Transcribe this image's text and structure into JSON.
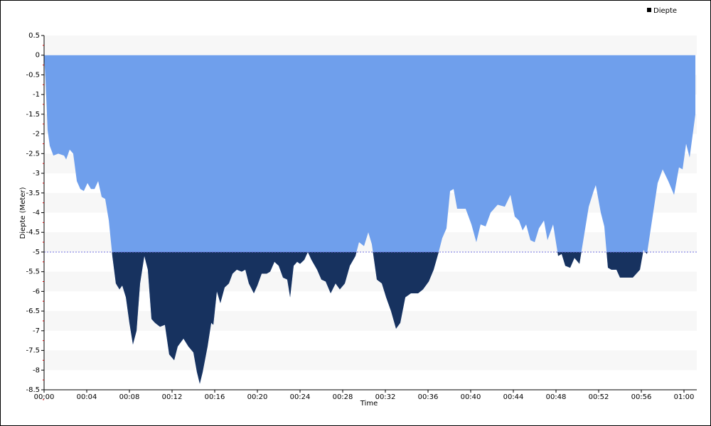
{
  "chart_data": {
    "type": "area",
    "x_label": "Time",
    "y_label": "Diepte (Meter)",
    "legend": "top-right",
    "series": [
      {
        "name": "Diepte",
        "color": "#6f9fec",
        "below_color": "#17325f",
        "x": [
          0,
          0.13,
          0.33,
          0.53,
          0.87,
          1.33,
          1.87,
          2.07,
          2.4,
          2.73,
          3.07,
          3.4,
          3.73,
          4.07,
          4.4,
          4.73,
          5.07,
          5.4,
          5.73,
          6.07,
          6.4,
          6.73,
          7.07,
          7.33,
          7.67,
          8.0,
          8.33,
          8.67,
          9.0,
          9.4,
          9.73,
          10.07,
          10.4,
          10.87,
          11.33,
          11.73,
          12.2,
          12.53,
          13.07,
          13.53,
          14.0,
          14.33,
          14.6,
          14.87,
          15.33,
          15.67,
          15.87,
          16.2,
          16.53,
          16.93,
          17.33,
          17.67,
          18.07,
          18.53,
          18.87,
          19.2,
          19.67,
          20.0,
          20.4,
          20.87,
          21.2,
          21.6,
          22.0,
          22.4,
          22.8,
          23.07,
          23.4,
          23.73,
          24.0,
          24.4,
          24.73,
          25.07,
          25.6,
          26.0,
          26.4,
          26.87,
          27.33,
          27.73,
          28.2,
          28.67,
          29.2,
          29.53,
          30.0,
          30.4,
          30.73,
          31.2,
          31.67,
          32.07,
          32.53,
          33.0,
          33.4,
          33.87,
          34.4,
          35.07,
          35.53,
          36.07,
          36.53,
          37.0,
          37.33,
          37.73,
          38.07,
          38.4,
          38.73,
          39.53,
          40.07,
          40.53,
          40.93,
          41.4,
          41.87,
          42.53,
          43.2,
          43.73,
          44.13,
          44.53,
          44.87,
          45.2,
          45.6,
          46.0,
          46.4,
          46.87,
          47.2,
          47.73,
          48.2,
          48.53,
          48.87,
          49.33,
          49.73,
          50.2,
          50.53,
          51.07,
          51.53,
          51.73,
          52.2,
          52.53,
          52.87,
          53.2,
          53.67,
          54.0,
          54.53,
          55.2,
          55.87,
          56.2,
          56.53,
          57.0,
          57.53,
          58.0,
          58.53,
          59.07,
          59.53,
          59.87,
          60.2,
          60.53,
          61.07
        ],
        "values": [
          0,
          -0.6,
          -1.9,
          -2.3,
          -2.55,
          -2.5,
          -2.55,
          -2.65,
          -2.4,
          -2.5,
          -3.2,
          -3.4,
          -3.45,
          -3.25,
          -3.4,
          -3.4,
          -3.2,
          -3.6,
          -3.65,
          -4.2,
          -5.1,
          -5.8,
          -5.95,
          -5.85,
          -6.15,
          -6.8,
          -7.35,
          -7.0,
          -5.8,
          -5.1,
          -5.45,
          -6.7,
          -6.8,
          -6.9,
          -6.85,
          -7.6,
          -7.75,
          -7.4,
          -7.2,
          -7.4,
          -7.55,
          -8.05,
          -8.35,
          -8.05,
          -7.4,
          -6.8,
          -6.85,
          -6.0,
          -6.3,
          -5.9,
          -5.8,
          -5.55,
          -5.45,
          -5.5,
          -5.45,
          -5.8,
          -6.05,
          -5.85,
          -5.55,
          -5.55,
          -5.5,
          -5.25,
          -5.35,
          -5.65,
          -5.7,
          -6.15,
          -5.35,
          -5.25,
          -5.3,
          -5.2,
          -5.0,
          -5.2,
          -5.45,
          -5.7,
          -5.75,
          -6.05,
          -5.8,
          -5.95,
          -5.8,
          -5.35,
          -5.1,
          -4.75,
          -4.85,
          -4.5,
          -4.8,
          -5.7,
          -5.8,
          -6.15,
          -6.5,
          -6.95,
          -6.8,
          -6.15,
          -6.05,
          -6.05,
          -5.95,
          -5.75,
          -5.45,
          -5.0,
          -4.65,
          -4.4,
          -3.45,
          -3.4,
          -3.9,
          -3.9,
          -4.3,
          -4.75,
          -4.3,
          -4.35,
          -4.0,
          -3.8,
          -3.85,
          -3.55,
          -4.1,
          -4.2,
          -4.45,
          -4.3,
          -4.7,
          -4.75,
          -4.4,
          -4.2,
          -4.7,
          -4.3,
          -5.1,
          -5.05,
          -5.35,
          -5.4,
          -5.15,
          -5.3,
          -4.75,
          -3.85,
          -3.45,
          -3.3,
          -4.0,
          -4.35,
          -5.4,
          -5.45,
          -5.45,
          -5.65,
          -5.65,
          -5.65,
          -5.45,
          -4.95,
          -5.05,
          -4.2,
          -3.25,
          -2.9,
          -3.2,
          -3.55,
          -2.85,
          -2.9,
          -2.25,
          -2.6,
          -1.5
        ]
      }
    ],
    "threshold": -5,
    "xlim": [
      0,
      61.2
    ],
    "xticks": [
      {
        "value": 0,
        "label": "00:00"
      },
      {
        "value": 4,
        "label": "00:04"
      },
      {
        "value": 8,
        "label": "00:08"
      },
      {
        "value": 12,
        "label": "00:12"
      },
      {
        "value": 16,
        "label": "00:16"
      },
      {
        "value": 20,
        "label": "00:20"
      },
      {
        "value": 24,
        "label": "00:24"
      },
      {
        "value": 28,
        "label": "00:28"
      },
      {
        "value": 32,
        "label": "00:32"
      },
      {
        "value": 36,
        "label": "00:36"
      },
      {
        "value": 40,
        "label": "00:40"
      },
      {
        "value": 44,
        "label": "00:44"
      },
      {
        "value": 48,
        "label": "00:48"
      },
      {
        "value": 52,
        "label": "00:52"
      },
      {
        "value": 56,
        "label": "00:56"
      },
      {
        "value": 60,
        "label": "01:00"
      }
    ],
    "ylim": [
      -8.5,
      0.5
    ],
    "yticks": [
      0.5,
      0,
      -0.5,
      -1,
      -1.5,
      -2,
      -2.5,
      -3,
      -3.5,
      -4,
      -4.5,
      -5,
      -5.5,
      -6,
      -6.5,
      -7,
      -7.5,
      -8,
      -8.5
    ],
    "bands": true
  }
}
